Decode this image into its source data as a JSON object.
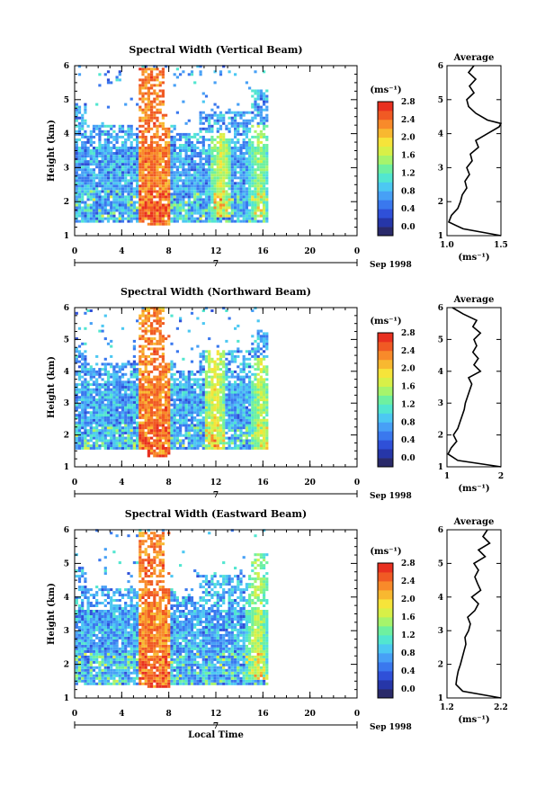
{
  "figure": {
    "x_axis_label": "Local Time",
    "x_ticks": [
      "0",
      "4",
      "8",
      "12",
      "16",
      "20",
      "0"
    ],
    "date_day": "7",
    "date_label": "Sep 1998",
    "y_axis_label": "Height (km)",
    "y_ticks": [
      "1",
      "2",
      "3",
      "4",
      "5",
      "6"
    ],
    "colorbar_unit": "(ms⁻¹)",
    "colorbar_ticks": [
      "0.0",
      "0.4",
      "0.8",
      "1.2",
      "1.6",
      "2.0",
      "2.4",
      "2.8"
    ],
    "colormap": [
      "#2a2a6a",
      "#2636a8",
      "#2f50d8",
      "#3a78ee",
      "#47a0f6",
      "#4cc8f2",
      "#52e6d0",
      "#6ef0a0",
      "#a6f46c",
      "#d8f048",
      "#f6e43a",
      "#f8b830",
      "#f88a2a",
      "#f05a24",
      "#e83020"
    ],
    "average_title": "Average",
    "average_xlabel": "(ms⁻¹)"
  },
  "chart_data": [
    {
      "type": "heatmap",
      "title": "Spectral Width (Vertical Beam)",
      "xlabel": "",
      "ylabel": "Height (km)",
      "xlim": [
        0,
        24
      ],
      "ylim": [
        1,
        6
      ],
      "zlim": [
        0,
        3.0
      ],
      "description_of_values": "approximate spectral width, strongest 2.8+ near 6-7 LT",
      "hotspots": [
        {
          "x": 6.5,
          "ymin": 1.4,
          "ymax": 5.8,
          "value": 2.9
        },
        {
          "x": 12.3,
          "ymin": 1.5,
          "ymax": 4.0,
          "value": 2.2
        },
        {
          "x": 15.6,
          "ymin": 1.5,
          "ymax": 4.2,
          "value": 2.0
        }
      ],
      "profile": {
        "title": "Average",
        "xlabel": "(ms⁻¹)",
        "xticks": [
          "1.0",
          "1.5"
        ],
        "xlim": [
          1.0,
          1.6
        ],
        "heights": [
          1.0,
          1.2,
          1.4,
          1.6,
          1.8,
          2.0,
          2.2,
          2.4,
          2.6,
          2.8,
          3.0,
          3.2,
          3.4,
          3.6,
          3.8,
          4.0,
          4.2,
          4.3,
          4.4,
          4.6,
          4.8,
          5.0,
          5.2,
          5.4,
          5.6,
          5.8,
          6.0
        ],
        "values": [
          1.6,
          1.18,
          1.02,
          1.05,
          1.12,
          1.15,
          1.17,
          1.22,
          1.2,
          1.25,
          1.22,
          1.28,
          1.26,
          1.35,
          1.32,
          1.45,
          1.58,
          1.62,
          1.45,
          1.32,
          1.24,
          1.22,
          1.3,
          1.25,
          1.32,
          1.24,
          1.3
        ]
      }
    },
    {
      "type": "heatmap",
      "title": "Spectral Width (Northward Beam)",
      "xlabel": "",
      "ylabel": "Height (km)",
      "xlim": [
        0,
        24
      ],
      "ylim": [
        1,
        6
      ],
      "zlim": [
        0,
        3.0
      ],
      "hotspots": [
        {
          "x": 6.7,
          "ymin": 1.4,
          "ymax": 6.0,
          "value": 2.9
        },
        {
          "x": 11.8,
          "ymin": 1.5,
          "ymax": 4.6,
          "value": 2.3
        },
        {
          "x": 15.8,
          "ymin": 1.5,
          "ymax": 4.4,
          "value": 2.1
        }
      ],
      "profile": {
        "title": "Average",
        "xlabel": "(ms⁻¹)",
        "xticks": [
          "1",
          "2"
        ],
        "xlim": [
          1,
          2
        ],
        "heights": [
          1.0,
          1.2,
          1.4,
          1.6,
          1.8,
          2.0,
          2.2,
          2.4,
          2.6,
          2.8,
          3.0,
          3.2,
          3.4,
          3.6,
          3.8,
          4.0,
          4.2,
          4.4,
          4.6,
          4.8,
          5.0,
          5.2,
          5.4,
          5.6,
          5.8,
          6.0
        ],
        "values": [
          2.0,
          1.2,
          1.02,
          1.08,
          1.18,
          1.12,
          1.2,
          1.24,
          1.28,
          1.32,
          1.34,
          1.38,
          1.42,
          1.46,
          1.4,
          1.62,
          1.5,
          1.58,
          1.48,
          1.55,
          1.5,
          1.62,
          1.48,
          1.55,
          1.3,
          1.1
        ]
      }
    },
    {
      "type": "heatmap",
      "title": "Spectral Width (Eastward Beam)",
      "xlabel": "Local Time",
      "ylabel": "Height (km)",
      "xlim": [
        0,
        24
      ],
      "ylim": [
        1,
        6
      ],
      "zlim": [
        0,
        3.0
      ],
      "hotspots": [
        {
          "x": 6.3,
          "ymin": 1.3,
          "ymax": 5.8,
          "value": 2.9
        },
        {
          "x": 15.4,
          "ymin": 1.5,
          "ymax": 5.6,
          "value": 2.1
        }
      ],
      "profile": {
        "title": "Average",
        "xlabel": "(ms⁻¹)",
        "xticks": [
          "1.2",
          "2.2"
        ],
        "xlim": [
          1.0,
          2.2
        ],
        "heights": [
          1.0,
          1.2,
          1.4,
          1.6,
          1.8,
          2.0,
          2.2,
          2.4,
          2.6,
          2.8,
          3.0,
          3.2,
          3.4,
          3.6,
          3.8,
          4.0,
          4.2,
          4.4,
          4.6,
          4.8,
          5.0,
          5.2,
          5.4,
          5.6,
          5.8,
          6.0
        ],
        "values": [
          2.2,
          1.35,
          1.2,
          1.22,
          1.25,
          1.3,
          1.34,
          1.38,
          1.42,
          1.4,
          1.48,
          1.52,
          1.46,
          1.62,
          1.7,
          1.55,
          1.75,
          1.68,
          1.62,
          1.7,
          1.6,
          1.85,
          1.7,
          1.95,
          1.8,
          1.9
        ]
      }
    }
  ]
}
